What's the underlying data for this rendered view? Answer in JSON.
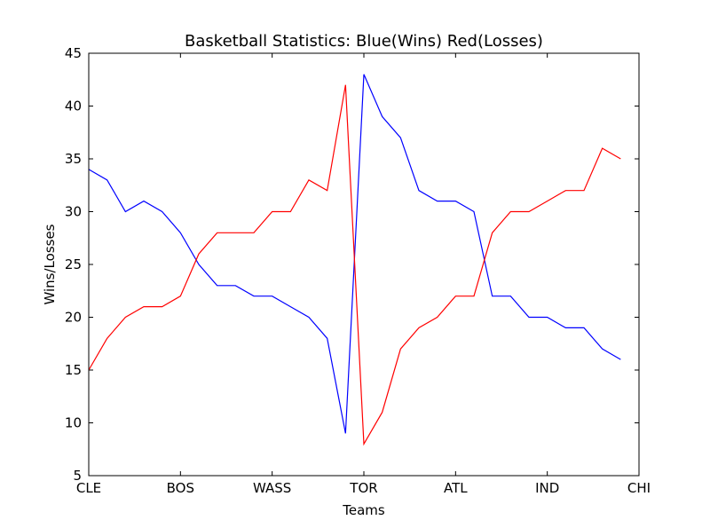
{
  "chart_data": {
    "type": "line",
    "title": "Basketball Statistics: Blue(Wins) Red(Losses)",
    "xlabel": "Teams",
    "ylabel": "Wins/Losses",
    "ylim": [
      5,
      45
    ],
    "yticks": [
      5,
      10,
      15,
      20,
      25,
      30,
      35,
      40,
      45
    ],
    "xticks": [
      {
        "index": 0,
        "label": "CLE"
      },
      {
        "index": 5,
        "label": "BOS"
      },
      {
        "index": 10,
        "label": "WASS"
      },
      {
        "index": 15,
        "label": "TOR"
      },
      {
        "index": 20,
        "label": "ATL"
      },
      {
        "index": 25,
        "label": "IND"
      },
      {
        "index": 30,
        "label": "CHI"
      }
    ],
    "xlim": [
      0,
      30
    ],
    "grid": false,
    "series": [
      {
        "color": "#0000ff",
        "values": [
          34,
          33,
          30,
          31,
          30,
          28,
          25,
          23,
          23,
          22,
          22,
          21,
          20,
          18,
          9,
          43,
          39,
          37,
          32,
          31,
          31,
          30,
          22,
          22,
          20,
          20,
          19,
          19,
          17,
          16
        ]
      },
      {
        "color": "#ff0000",
        "values": [
          15,
          18,
          20,
          21,
          21,
          22,
          26,
          28,
          28,
          28,
          30,
          30,
          33,
          32,
          42,
          8,
          11,
          17,
          19,
          20,
          22,
          22,
          28,
          30,
          30,
          31,
          32,
          32,
          36,
          35
        ]
      }
    ]
  }
}
